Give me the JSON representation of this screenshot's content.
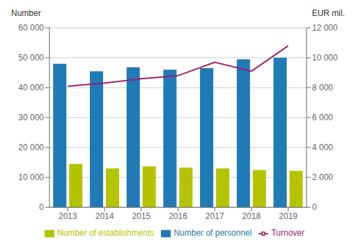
{
  "chart_data": {
    "type": "bar",
    "categories": [
      "2013",
      "2014",
      "2015",
      "2016",
      "2017",
      "2018",
      "2019"
    ],
    "series": [
      {
        "name": "Number of personnel",
        "type": "bar",
        "color": "#1f7ab5",
        "values": [
          48000,
          45500,
          46800,
          46000,
          46500,
          49500,
          50000
        ]
      },
      {
        "name": "Number of establishments",
        "type": "bar",
        "color": "#b5c400",
        "values": [
          14500,
          13000,
          13700,
          13300,
          13000,
          12500,
          12200
        ]
      },
      {
        "name": "Turnover",
        "type": "line",
        "axis": "y2",
        "color": "#9b1e6e",
        "values": [
          8100,
          8300,
          8600,
          8800,
          9700,
          9100,
          10800
        ]
      }
    ],
    "ylabel": "Number",
    "y2label": "EUR mil.",
    "ylim": [
      0,
      60000
    ],
    "yticks": [
      0,
      {
        "value": 10000,
        "label": "10 000"
      },
      {
        "value": 20000,
        "label": "20 000"
      },
      {
        "value": 30000,
        "label": "30 000"
      },
      {
        "value": 40000,
        "label": "40 000"
      },
      {
        "value": 50000,
        "label": "50 000"
      },
      {
        "value": 60000,
        "label": "60 000"
      }
    ],
    "y2lim": [
      0,
      12000
    ],
    "y2ticks": [
      0,
      {
        "value": 2000,
        "label": "2 000"
      },
      {
        "value": 4000,
        "label": "4 000"
      },
      {
        "value": 6000,
        "label": "6 000"
      },
      {
        "value": 8000,
        "label": "8 000"
      },
      {
        "value": 10000,
        "label": "10 000"
      },
      {
        "value": 12000,
        "label": "12 000"
      }
    ],
    "grid": true,
    "legend": "bottom"
  }
}
